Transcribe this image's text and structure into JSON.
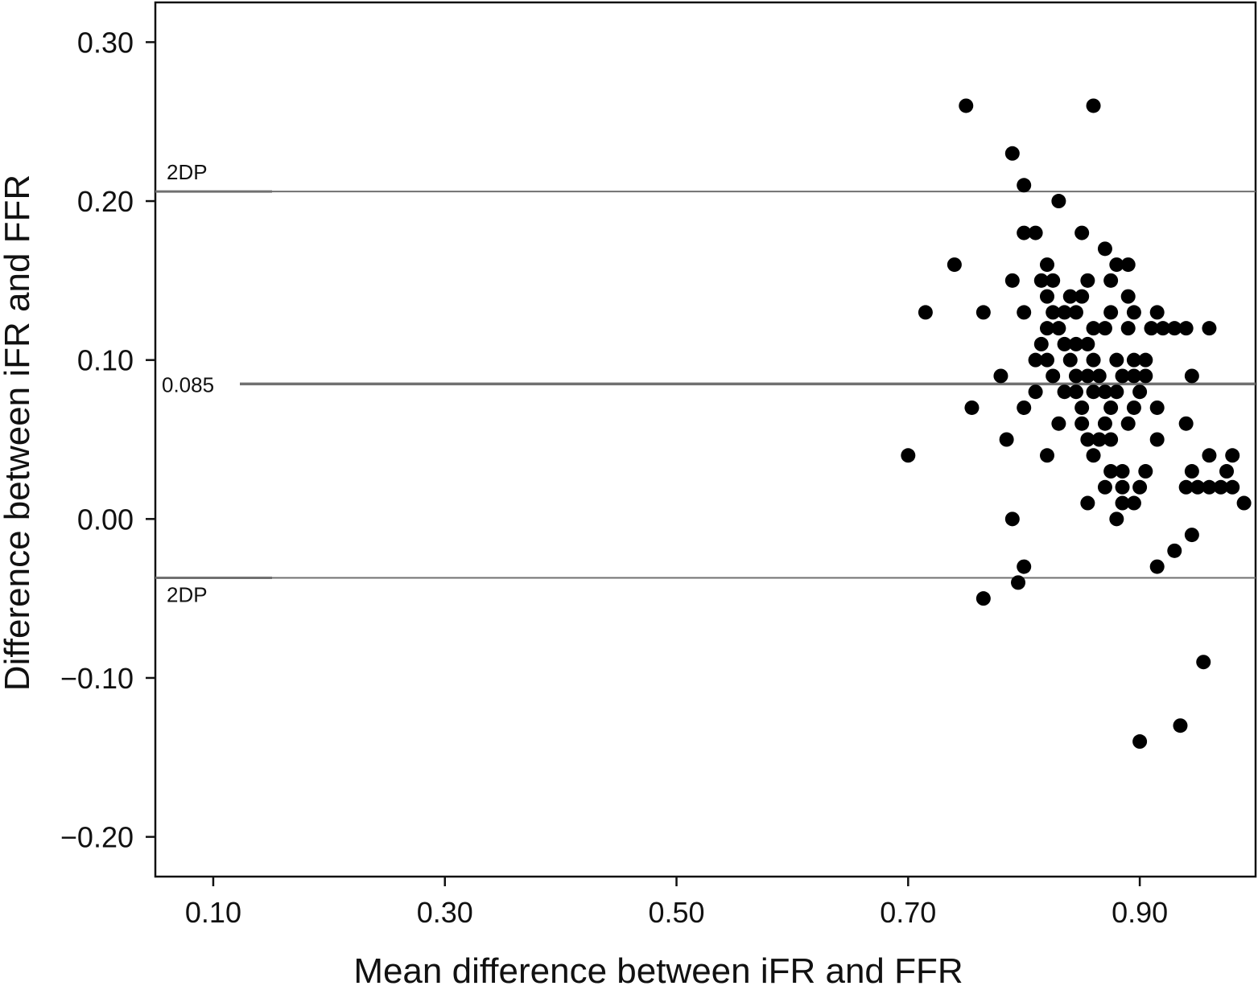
{
  "chart_data": {
    "type": "scatter",
    "title": "",
    "xlabel": "Mean difference between iFR and FFR",
    "ylabel": "Difference between iFR and FFR",
    "xlim": [
      0.05,
      1.0
    ],
    "ylim": [
      -0.225,
      0.325
    ],
    "x_ticks": [
      {
        "value": 0.1,
        "label": "0.10"
      },
      {
        "value": 0.3,
        "label": "0.30"
      },
      {
        "value": 0.5,
        "label": "0.50"
      },
      {
        "value": 0.7,
        "label": "0.70"
      },
      {
        "value": 0.9,
        "label": "0.90"
      }
    ],
    "y_ticks": [
      {
        "value": 0.3,
        "label": "0.30"
      },
      {
        "value": 0.2,
        "label": "0.20"
      },
      {
        "value": 0.1,
        "label": "0.10"
      },
      {
        "value": 0.0,
        "label": "0.00"
      },
      {
        "value": -0.1,
        "label": "−0.10"
      },
      {
        "value": -0.2,
        "label": "−0.20"
      }
    ],
    "grid": false,
    "legend": "none",
    "reference_lines": [
      {
        "id": "upper-limit",
        "value": 0.206,
        "label": "2DP",
        "color": "#707070"
      },
      {
        "id": "mean",
        "value": 0.085,
        "label": "0.085",
        "color": "#707070"
      },
      {
        "id": "lower-limit",
        "value": -0.037,
        "label": "2DP",
        "color": "#707070"
      }
    ],
    "marker_color": "#000000",
    "series": [
      {
        "points": [
          [
            0.75,
            0.26
          ],
          [
            0.86,
            0.26
          ],
          [
            0.79,
            0.23
          ],
          [
            0.8,
            0.21
          ],
          [
            0.83,
            0.2
          ],
          [
            0.8,
            0.18
          ],
          [
            0.81,
            0.18
          ],
          [
            0.85,
            0.18
          ],
          [
            0.87,
            0.17
          ],
          [
            0.74,
            0.16
          ],
          [
            0.82,
            0.16
          ],
          [
            0.88,
            0.16
          ],
          [
            0.89,
            0.16
          ],
          [
            0.79,
            0.15
          ],
          [
            0.815,
            0.15
          ],
          [
            0.825,
            0.15
          ],
          [
            0.855,
            0.15
          ],
          [
            0.875,
            0.15
          ],
          [
            0.715,
            0.13
          ],
          [
            0.765,
            0.13
          ],
          [
            0.82,
            0.14
          ],
          [
            0.84,
            0.14
          ],
          [
            0.85,
            0.14
          ],
          [
            0.89,
            0.14
          ],
          [
            0.8,
            0.13
          ],
          [
            0.825,
            0.13
          ],
          [
            0.835,
            0.13
          ],
          [
            0.845,
            0.13
          ],
          [
            0.875,
            0.13
          ],
          [
            0.895,
            0.13
          ],
          [
            0.915,
            0.13
          ],
          [
            0.82,
            0.12
          ],
          [
            0.83,
            0.12
          ],
          [
            0.86,
            0.12
          ],
          [
            0.87,
            0.12
          ],
          [
            0.89,
            0.12
          ],
          [
            0.91,
            0.12
          ],
          [
            0.92,
            0.12
          ],
          [
            0.93,
            0.12
          ],
          [
            0.94,
            0.12
          ],
          [
            0.96,
            0.12
          ],
          [
            0.815,
            0.11
          ],
          [
            0.835,
            0.11
          ],
          [
            0.845,
            0.11
          ],
          [
            0.855,
            0.11
          ],
          [
            0.81,
            0.1
          ],
          [
            0.82,
            0.1
          ],
          [
            0.84,
            0.1
          ],
          [
            0.86,
            0.1
          ],
          [
            0.88,
            0.1
          ],
          [
            0.895,
            0.1
          ],
          [
            0.905,
            0.1
          ],
          [
            0.78,
            0.09
          ],
          [
            0.825,
            0.09
          ],
          [
            0.845,
            0.09
          ],
          [
            0.855,
            0.09
          ],
          [
            0.865,
            0.09
          ],
          [
            0.885,
            0.09
          ],
          [
            0.895,
            0.09
          ],
          [
            0.905,
            0.09
          ],
          [
            0.945,
            0.09
          ],
          [
            0.81,
            0.08
          ],
          [
            0.835,
            0.08
          ],
          [
            0.845,
            0.08
          ],
          [
            0.86,
            0.08
          ],
          [
            0.87,
            0.08
          ],
          [
            0.88,
            0.08
          ],
          [
            0.9,
            0.08
          ],
          [
            0.755,
            0.07
          ],
          [
            0.8,
            0.07
          ],
          [
            0.85,
            0.07
          ],
          [
            0.875,
            0.07
          ],
          [
            0.895,
            0.07
          ],
          [
            0.915,
            0.07
          ],
          [
            0.83,
            0.06
          ],
          [
            0.85,
            0.06
          ],
          [
            0.87,
            0.06
          ],
          [
            0.89,
            0.06
          ],
          [
            0.94,
            0.06
          ],
          [
            0.785,
            0.05
          ],
          [
            0.855,
            0.05
          ],
          [
            0.865,
            0.05
          ],
          [
            0.875,
            0.05
          ],
          [
            0.915,
            0.05
          ],
          [
            0.7,
            0.04
          ],
          [
            0.82,
            0.04
          ],
          [
            0.86,
            0.04
          ],
          [
            0.96,
            0.04
          ],
          [
            0.98,
            0.04
          ],
          [
            0.875,
            0.03
          ],
          [
            0.885,
            0.03
          ],
          [
            0.905,
            0.03
          ],
          [
            0.945,
            0.03
          ],
          [
            0.975,
            0.03
          ],
          [
            0.87,
            0.02
          ],
          [
            0.885,
            0.02
          ],
          [
            0.9,
            0.02
          ],
          [
            0.94,
            0.02
          ],
          [
            0.95,
            0.02
          ],
          [
            0.96,
            0.02
          ],
          [
            0.97,
            0.02
          ],
          [
            0.98,
            0.02
          ],
          [
            0.855,
            0.01
          ],
          [
            0.885,
            0.01
          ],
          [
            0.895,
            0.01
          ],
          [
            0.99,
            0.01
          ],
          [
            0.79,
            0.0
          ],
          [
            0.88,
            0.0
          ],
          [
            0.945,
            -0.01
          ],
          [
            0.93,
            -0.02
          ],
          [
            0.8,
            -0.03
          ],
          [
            0.915,
            -0.03
          ],
          [
            0.795,
            -0.04
          ],
          [
            0.765,
            -0.05
          ],
          [
            0.955,
            -0.09
          ],
          [
            0.935,
            -0.13
          ],
          [
            0.9,
            -0.14
          ]
        ]
      }
    ]
  }
}
